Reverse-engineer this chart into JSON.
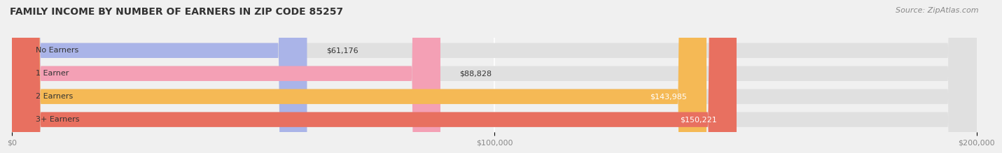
{
  "title": "FAMILY INCOME BY NUMBER OF EARNERS IN ZIP CODE 85257",
  "source": "Source: ZipAtlas.com",
  "categories": [
    "No Earners",
    "1 Earner",
    "2 Earners",
    "3+ Earners"
  ],
  "values": [
    61176,
    88828,
    143985,
    150221
  ],
  "bar_colors": [
    "#aab4e8",
    "#f4a0b5",
    "#f5b955",
    "#e87060"
  ],
  "value_labels": [
    "$61,176",
    "$88,828",
    "$143,985",
    "$150,221"
  ],
  "xlim": [
    0,
    200000
  ],
  "xticks": [
    0,
    100000,
    200000
  ],
  "xtick_labels": [
    "$0",
    "$100,000",
    "$200,000"
  ],
  "background_color": "#f0f0f0",
  "bar_background_color": "#e0e0e0",
  "title_color": "#333333",
  "source_color": "#888888",
  "title_fontsize": 10,
  "source_fontsize": 8,
  "bar_height": 0.65,
  "bar_label_inside_color_threshold": 120000
}
